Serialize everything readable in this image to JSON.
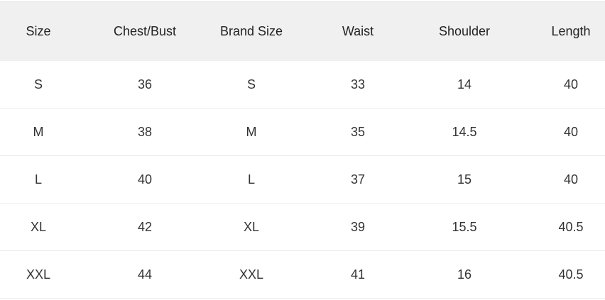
{
  "table": {
    "headers": [
      "Size",
      "Chest/Bust",
      "Brand Size",
      "Waist",
      "Shoulder",
      "Length"
    ],
    "rows": [
      [
        "S",
        "36",
        "S",
        "33",
        "14",
        "40"
      ],
      [
        "M",
        "38",
        "M",
        "35",
        "14.5",
        "40"
      ],
      [
        "L",
        "40",
        "L",
        "37",
        "15",
        "40"
      ],
      [
        "XL",
        "42",
        "XL",
        "39",
        "15.5",
        "40.5"
      ],
      [
        "XXL",
        "44",
        "XXL",
        "41",
        "16",
        "40.5"
      ]
    ]
  }
}
